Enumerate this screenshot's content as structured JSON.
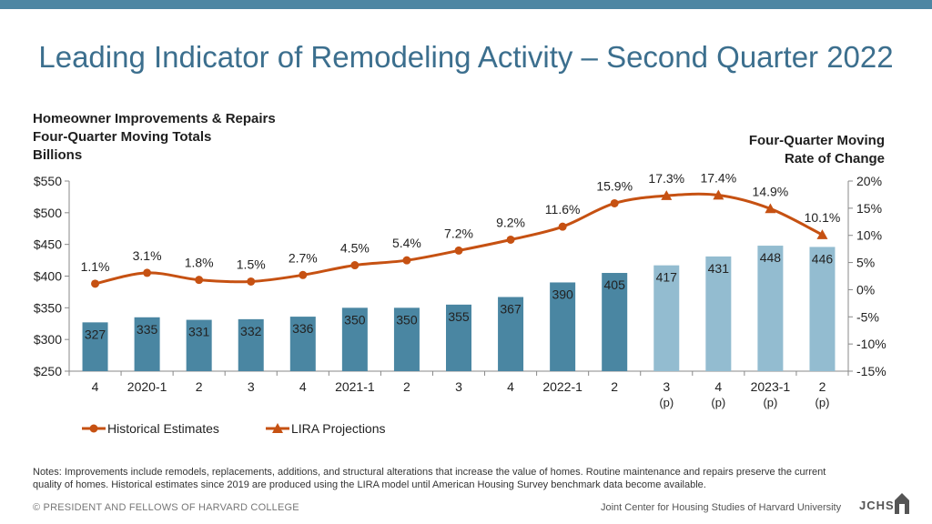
{
  "title": "Leading Indicator of Remodeling Activity – Second Quarter 2022",
  "left_axis_label": [
    "Homeowner Improvements & Repairs",
    "Four-Quarter Moving Totals",
    "Billions"
  ],
  "right_axis_label": [
    "Four-Quarter Moving",
    "Rate of Change"
  ],
  "notes": "Notes: Improvements include remodels, replacements, additions, and structural alterations that increase the value of homes. Routine maintenance and repairs preserve the current quality of homes. Historical estimates since 2019 are produced using the LIRA model until American Housing Survey benchmark data become available.",
  "copyright": "© PRESIDENT AND FELLOWS OF HARVARD COLLEGE",
  "organization": "Joint Center for Housing Studies of Harvard University",
  "logo_text": "JCHS",
  "colors": {
    "title": "#3c6f8e",
    "historical_bar": "#4a86a2",
    "projection_bar": "#93bcd0",
    "line": "#c65112",
    "topbar": "#4d86a3"
  },
  "chart_data": {
    "type": "bar",
    "categories": [
      [
        "4"
      ],
      [
        "2020-1"
      ],
      [
        "2"
      ],
      [
        "3"
      ],
      [
        "4"
      ],
      [
        "2021-1"
      ],
      [
        "2"
      ],
      [
        "3"
      ],
      [
        "4"
      ],
      [
        "2022-1"
      ],
      [
        "2"
      ],
      [
        "3",
        "(p)"
      ],
      [
        "4",
        "(p)"
      ],
      [
        "2023-1",
        "(p)"
      ],
      [
        "2",
        "(p)"
      ]
    ],
    "bars": {
      "values": [
        327,
        335,
        331,
        332,
        336,
        350,
        350,
        355,
        367,
        390,
        405,
        417,
        431,
        448,
        446
      ],
      "labels": [
        "327",
        "335",
        "331",
        "332",
        "336",
        "350",
        "350",
        "355",
        "367",
        "390",
        "405",
        "417",
        "431",
        "448",
        "446"
      ],
      "projected": [
        false,
        false,
        false,
        false,
        false,
        false,
        false,
        false,
        false,
        false,
        false,
        true,
        true,
        true,
        true
      ]
    },
    "line": {
      "values": [
        1.1,
        3.1,
        1.8,
        1.5,
        2.7,
        4.5,
        5.4,
        7.2,
        9.2,
        11.6,
        15.9,
        17.3,
        17.4,
        14.9,
        10.1
      ],
      "labels": [
        "1.1%",
        "3.1%",
        "1.8%",
        "1.5%",
        "2.7%",
        "4.5%",
        "5.4%",
        "7.2%",
        "9.2%",
        "11.6%",
        "15.9%",
        "17.3%",
        "17.4%",
        "14.9%",
        "10.1%"
      ],
      "projected": [
        false,
        false,
        false,
        false,
        false,
        false,
        false,
        false,
        false,
        false,
        false,
        true,
        true,
        true,
        true
      ]
    },
    "y_left": {
      "min": 250,
      "max": 550,
      "ticks": [
        250,
        300,
        350,
        400,
        450,
        500,
        550
      ],
      "tick_labels": [
        "$250",
        "$300",
        "$350",
        "$400",
        "$450",
        "$500",
        "$550"
      ]
    },
    "y_right": {
      "min": -15,
      "max": 20,
      "ticks": [
        -15,
        -10,
        -5,
        0,
        5,
        10,
        15,
        20
      ],
      "tick_labels": [
        "-15%",
        "-10%",
        "-5%",
        "0%",
        "5%",
        "10%",
        "15%",
        "20%"
      ]
    },
    "legend": {
      "placement": "bottom-left",
      "items": [
        {
          "label": "Historical Estimates",
          "marker": "circle"
        },
        {
          "label": "LIRA Projections",
          "marker": "triangle"
        }
      ]
    },
    "grid": false
  }
}
